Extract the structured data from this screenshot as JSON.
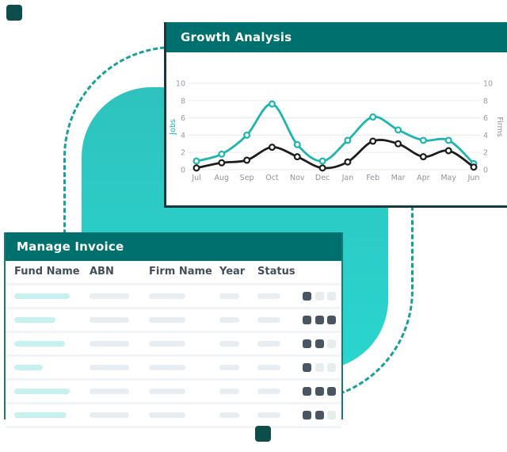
{
  "growth_card": {
    "title": "Growth Analysis",
    "chart_data": {
      "type": "line",
      "categories": [
        "Jul",
        "Aug",
        "Sep",
        "Oct",
        "Nov",
        "Dec",
        "Jan",
        "Feb",
        "Mar",
        "Apr",
        "May",
        "Jun"
      ],
      "series": [
        {
          "name": "Jobs",
          "color": "#1cb5b1",
          "values": [
            1.0,
            1.8,
            4.0,
            7.6,
            2.9,
            1.0,
            3.4,
            6.1,
            4.6,
            3.4,
            3.4,
            0.7
          ]
        },
        {
          "name": "Firms",
          "color": "#1d1d1d",
          "values": [
            0.2,
            0.8,
            1.1,
            2.6,
            1.5,
            0.2,
            0.9,
            3.3,
            3.0,
            1.5,
            2.2,
            0.3
          ]
        }
      ],
      "ylabel_left": "Jobs",
      "ylabel_right": "Firms",
      "yticks": [
        0,
        2,
        4,
        6,
        8,
        10
      ],
      "ylim": [
        0,
        10
      ],
      "grid": "horizontal",
      "legend": "none"
    }
  },
  "invoice_card": {
    "title": "Manage Invoice",
    "columns": [
      "Fund Name",
      "ABN",
      "Firm Name",
      "Year",
      "Status"
    ],
    "skeleton_widths": {
      "abn": 50,
      "firm": 46,
      "year": 25,
      "status": 29
    },
    "rows": [
      {
        "fund_bar_width": 70,
        "actions": [
          "dark",
          "light",
          "light"
        ]
      },
      {
        "fund_bar_width": 52,
        "actions": [
          "dark",
          "dark",
          "dark"
        ]
      },
      {
        "fund_bar_width": 64,
        "actions": [
          "dark",
          "dark",
          "light"
        ]
      },
      {
        "fund_bar_width": 36,
        "actions": [
          "dark",
          "light",
          "light"
        ]
      },
      {
        "fund_bar_width": 70,
        "actions": [
          "dark",
          "dark",
          "dark"
        ]
      },
      {
        "fund_bar_width": 66,
        "actions": [
          "dark",
          "dark",
          "light"
        ]
      }
    ]
  },
  "colors": {
    "header_teal": "#00706e",
    "bright_teal": "#2bd0c8",
    "dashed_teal": "#17a09a",
    "dark_square": "#0d4d4a",
    "card_edge_dark": "#17393d",
    "skeleton_teal": "#c6f1ef",
    "skeleton_gray": "#e8edf1",
    "action_dark": "#4a5564",
    "tick_text": "#979da6"
  }
}
